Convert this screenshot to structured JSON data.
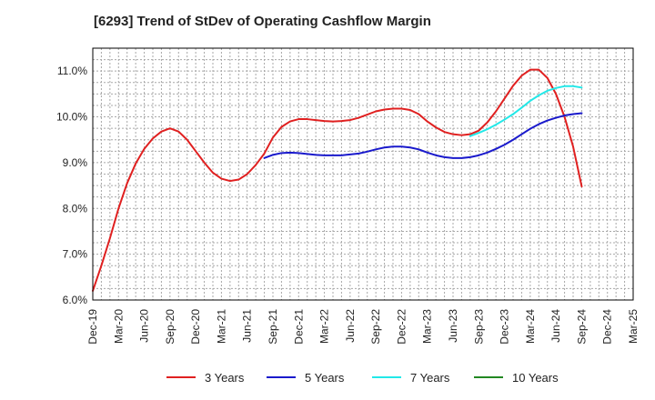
{
  "chart_data": {
    "type": "line",
    "title": "[6293]  Trend of StDev of Operating Cashflow Margin",
    "xlabel": "",
    "ylabel": "",
    "x_tick_labels": [
      "Dec-19",
      "Mar-20",
      "Jun-20",
      "Sep-20",
      "Dec-20",
      "Mar-21",
      "Jun-21",
      "Sep-21",
      "Dec-21",
      "Mar-22",
      "Jun-22",
      "Sep-22",
      "Dec-22",
      "Mar-23",
      "Jun-23",
      "Sep-23",
      "Dec-23",
      "Mar-24",
      "Jun-24",
      "Sep-24",
      "Dec-24",
      "Mar-25"
    ],
    "y_tick_labels": [
      "6.0%",
      "7.0%",
      "8.0%",
      "9.0%",
      "10.0%",
      "11.0%"
    ],
    "ylim": [
      6.0,
      11.5
    ],
    "y_ticks": [
      6.0,
      7.0,
      8.0,
      9.0,
      10.0,
      11.0
    ],
    "grid": true,
    "legend_position": "bottom",
    "series": [
      {
        "name": "3 Years",
        "color": "#e02020",
        "points": [
          [
            "Dec-19",
            6.2
          ],
          [
            "Jan-20",
            6.75
          ],
          [
            "Feb-20",
            7.35
          ],
          [
            "Mar-20",
            8.0
          ],
          [
            "Apr-20",
            8.55
          ],
          [
            "May-20",
            8.98
          ],
          [
            "Jun-20",
            9.3
          ],
          [
            "Jul-20",
            9.53
          ],
          [
            "Aug-20",
            9.68
          ],
          [
            "Sep-20",
            9.75
          ],
          [
            "Oct-20",
            9.68
          ],
          [
            "Nov-20",
            9.5
          ],
          [
            "Dec-20",
            9.25
          ],
          [
            "Jan-21",
            9.0
          ],
          [
            "Feb-21",
            8.78
          ],
          [
            "Mar-21",
            8.65
          ],
          [
            "Apr-21",
            8.6
          ],
          [
            "May-21",
            8.63
          ],
          [
            "Jun-21",
            8.75
          ],
          [
            "Jul-21",
            8.95
          ],
          [
            "Aug-21",
            9.2
          ],
          [
            "Sep-21",
            9.55
          ],
          [
            "Oct-21",
            9.78
          ],
          [
            "Nov-21",
            9.9
          ],
          [
            "Dec-21",
            9.95
          ],
          [
            "Jan-22",
            9.95
          ],
          [
            "Feb-22",
            9.93
          ],
          [
            "Mar-22",
            9.91
          ],
          [
            "Apr-22",
            9.9
          ],
          [
            "May-22",
            9.91
          ],
          [
            "Jun-22",
            9.93
          ],
          [
            "Jul-22",
            9.98
          ],
          [
            "Aug-22",
            10.05
          ],
          [
            "Sep-22",
            10.12
          ],
          [
            "Oct-22",
            10.16
          ],
          [
            "Nov-22",
            10.18
          ],
          [
            "Dec-22",
            10.18
          ],
          [
            "Jan-23",
            10.15
          ],
          [
            "Feb-23",
            10.06
          ],
          [
            "Mar-23",
            9.9
          ],
          [
            "Apr-23",
            9.77
          ],
          [
            "May-23",
            9.67
          ],
          [
            "Jun-23",
            9.62
          ],
          [
            "Jul-23",
            9.6
          ],
          [
            "Aug-23",
            9.62
          ],
          [
            "Sep-23",
            9.7
          ],
          [
            "Oct-23",
            9.88
          ],
          [
            "Nov-23",
            10.12
          ],
          [
            "Dec-23",
            10.4
          ],
          [
            "Jan-24",
            10.68
          ],
          [
            "Feb-24",
            10.9
          ],
          [
            "Mar-24",
            11.03
          ],
          [
            "Apr-24",
            11.03
          ],
          [
            "May-24",
            10.85
          ],
          [
            "Jun-24",
            10.5
          ],
          [
            "Jul-24",
            10.0
          ],
          [
            "Aug-24",
            9.35
          ],
          [
            "Sep-24",
            8.48
          ]
        ]
      },
      {
        "name": "5 Years",
        "color": "#1a1acc",
        "points": [
          [
            "Aug-21",
            9.1
          ],
          [
            "Sep-21",
            9.17
          ],
          [
            "Oct-21",
            9.21
          ],
          [
            "Nov-21",
            9.22
          ],
          [
            "Dec-21",
            9.21
          ],
          [
            "Jan-22",
            9.19
          ],
          [
            "Feb-22",
            9.17
          ],
          [
            "Mar-22",
            9.16
          ],
          [
            "Apr-22",
            9.16
          ],
          [
            "May-22",
            9.16
          ],
          [
            "Jun-22",
            9.18
          ],
          [
            "Jul-22",
            9.2
          ],
          [
            "Aug-22",
            9.24
          ],
          [
            "Sep-22",
            9.29
          ],
          [
            "Oct-22",
            9.33
          ],
          [
            "Nov-22",
            9.35
          ],
          [
            "Dec-22",
            9.35
          ],
          [
            "Jan-23",
            9.33
          ],
          [
            "Feb-23",
            9.29
          ],
          [
            "Mar-23",
            9.22
          ],
          [
            "Apr-23",
            9.16
          ],
          [
            "May-23",
            9.12
          ],
          [
            "Jun-23",
            9.1
          ],
          [
            "Jul-23",
            9.1
          ],
          [
            "Aug-23",
            9.12
          ],
          [
            "Sep-23",
            9.16
          ],
          [
            "Oct-23",
            9.22
          ],
          [
            "Nov-23",
            9.3
          ],
          [
            "Dec-23",
            9.39
          ],
          [
            "Jan-24",
            9.5
          ],
          [
            "Feb-24",
            9.62
          ],
          [
            "Mar-24",
            9.74
          ],
          [
            "Apr-24",
            9.84
          ],
          [
            "May-24",
            9.92
          ],
          [
            "Jun-24",
            9.98
          ],
          [
            "Jul-24",
            10.03
          ],
          [
            "Aug-24",
            10.06
          ],
          [
            "Sep-24",
            10.08
          ]
        ]
      },
      {
        "name": "7 Years",
        "color": "#22e8e8",
        "points": [
          [
            "Aug-23",
            9.58
          ],
          [
            "Sep-23",
            9.65
          ],
          [
            "Oct-23",
            9.73
          ],
          [
            "Nov-23",
            9.83
          ],
          [
            "Dec-23",
            9.94
          ],
          [
            "Jan-24",
            10.06
          ],
          [
            "Feb-24",
            10.2
          ],
          [
            "Mar-24",
            10.35
          ],
          [
            "Apr-24",
            10.47
          ],
          [
            "May-24",
            10.57
          ],
          [
            "Jun-24",
            10.63
          ],
          [
            "Jul-24",
            10.67
          ],
          [
            "Aug-24",
            10.67
          ],
          [
            "Sep-24",
            10.64
          ]
        ]
      },
      {
        "name": "10 Years",
        "color": "#228822",
        "points": []
      }
    ]
  }
}
